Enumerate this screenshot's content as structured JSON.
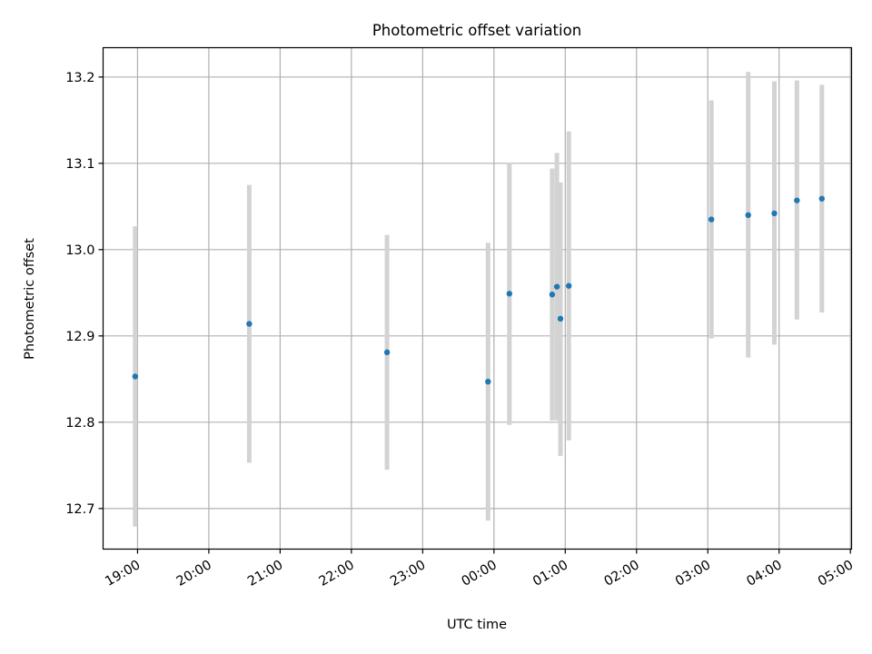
{
  "chart_data": {
    "type": "scatter",
    "title": "Photometric offset variation",
    "xlabel": "UTC time",
    "ylabel": "Photometric offset",
    "x_ticks": [
      "19:00",
      "20:00",
      "21:00",
      "22:00",
      "23:00",
      "00:00",
      "01:00",
      "02:00",
      "03:00",
      "04:00",
      "05:00"
    ],
    "y_ticks": [
      "12.7",
      "12.8",
      "12.9",
      "13.0",
      "13.1",
      "13.2"
    ],
    "xlim": [
      "18:31",
      "05:01"
    ],
    "ylim": [
      12.653,
      13.234
    ],
    "grid": true,
    "colors": {
      "point": "#1f77b4",
      "errorbar": "#d3d3d3",
      "grid": "#b0b0b0"
    },
    "points": [
      {
        "x": "18:58",
        "y": 12.853,
        "ylow": 12.679,
        "yhigh": 13.027
      },
      {
        "x": "20:34",
        "y": 12.914,
        "ylow": 12.753,
        "yhigh": 13.075
      },
      {
        "x": "22:30",
        "y": 12.881,
        "ylow": 12.745,
        "yhigh": 13.017
      },
      {
        "x": "23:55",
        "y": 12.847,
        "ylow": 12.686,
        "yhigh": 13.008
      },
      {
        "x": "00:13",
        "y": 12.949,
        "ylow": 12.797,
        "yhigh": 13.101
      },
      {
        "x": "00:49",
        "y": 12.948,
        "ylow": 12.802,
        "yhigh": 13.094
      },
      {
        "x": "00:53",
        "y": 12.957,
        "ylow": 12.802,
        "yhigh": 13.112
      },
      {
        "x": "00:56",
        "y": 12.92,
        "ylow": 12.761,
        "yhigh": 13.078
      },
      {
        "x": "01:03",
        "y": 12.958,
        "ylow": 12.779,
        "yhigh": 13.137
      },
      {
        "x": "03:03",
        "y": 13.035,
        "ylow": 12.897,
        "yhigh": 13.173
      },
      {
        "x": "03:34",
        "y": 13.04,
        "ylow": 12.875,
        "yhigh": 13.206
      },
      {
        "x": "03:56",
        "y": 13.042,
        "ylow": 12.89,
        "yhigh": 13.195
      },
      {
        "x": "04:15",
        "y": 13.057,
        "ylow": 12.919,
        "yhigh": 13.196
      },
      {
        "x": "04:36",
        "y": 13.059,
        "ylow": 12.927,
        "yhigh": 13.191
      }
    ]
  }
}
